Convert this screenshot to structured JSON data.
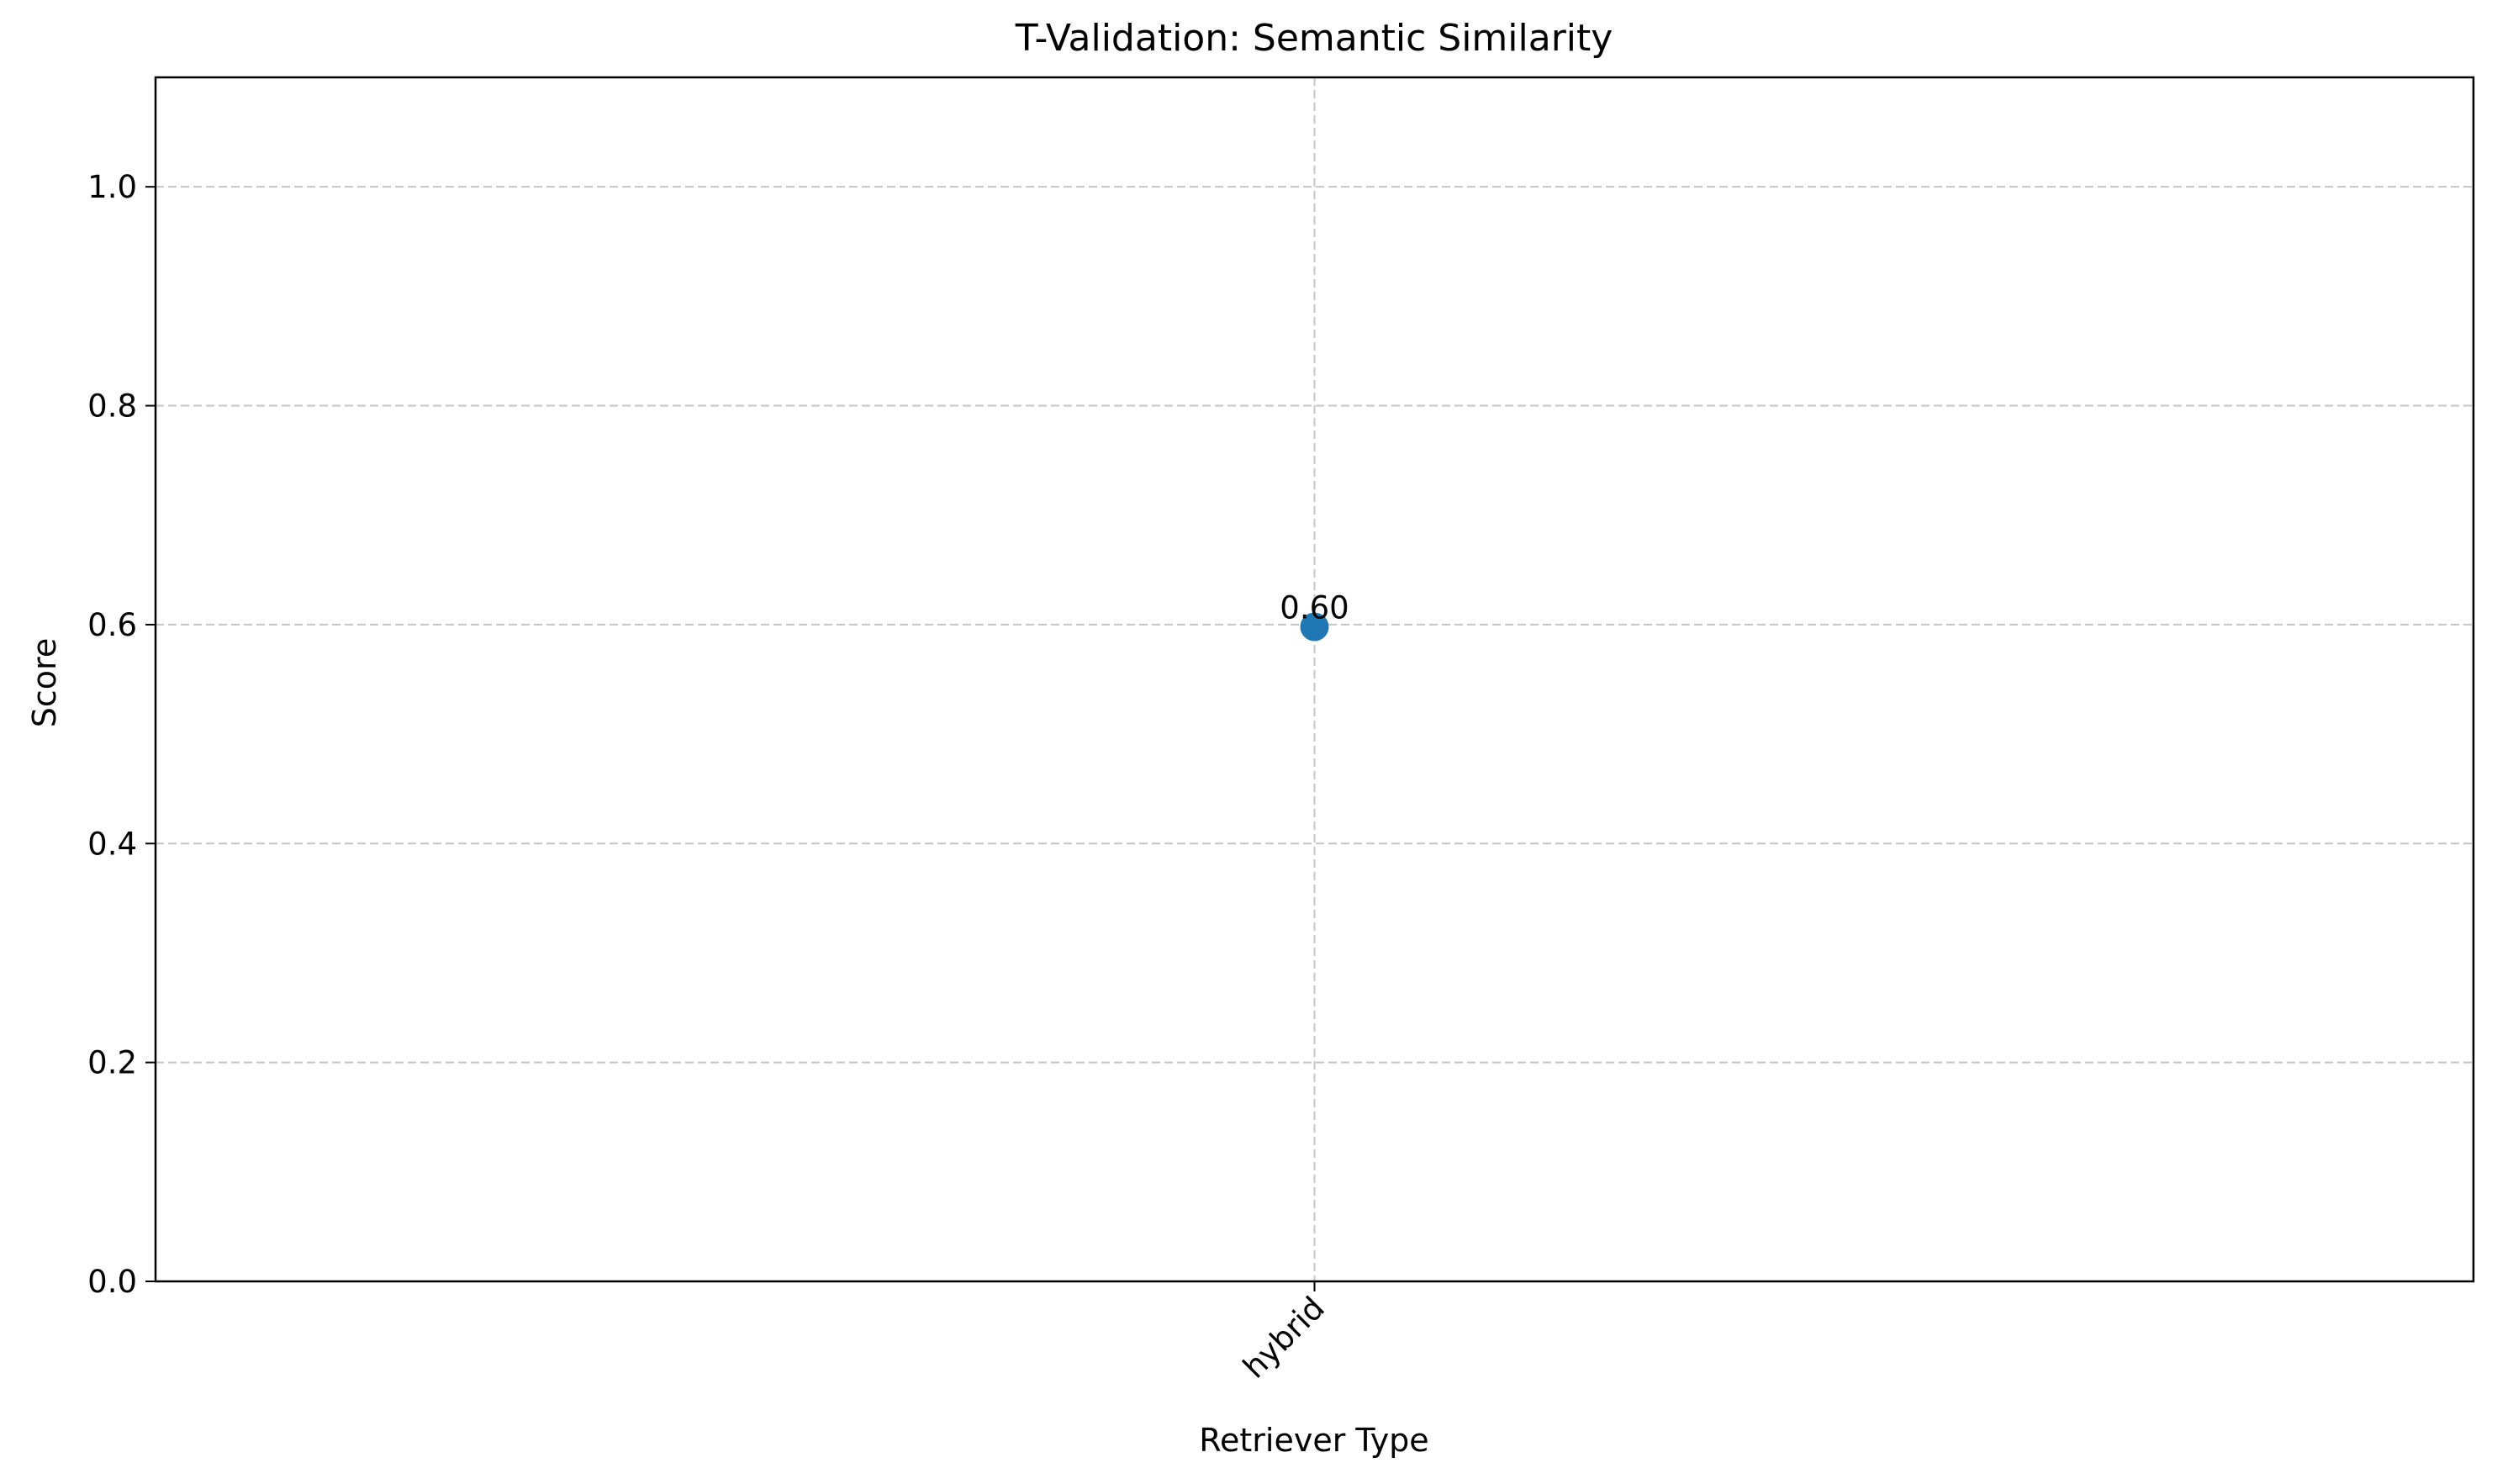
{
  "chart_data": {
    "type": "scatter",
    "title": "T-Validation: Semantic Similarity",
    "xlabel": "Retriever Type",
    "ylabel": "Score",
    "categories": [
      "hybrid"
    ],
    "values": [
      0.598
    ],
    "data_labels": [
      "0.60"
    ],
    "ylim": [
      0,
      1.1
    ],
    "yticks": [
      0.0,
      0.2,
      0.4,
      0.6,
      0.8,
      1.0
    ],
    "ytick_labels": [
      "0.0",
      "0.2",
      "0.4",
      "0.6",
      "0.8",
      "1.0"
    ],
    "grid": true,
    "legend": "none",
    "marker_color": "#1f77b4",
    "grid_color": "#b0b0b0",
    "xtick_rotation_deg": 45
  }
}
